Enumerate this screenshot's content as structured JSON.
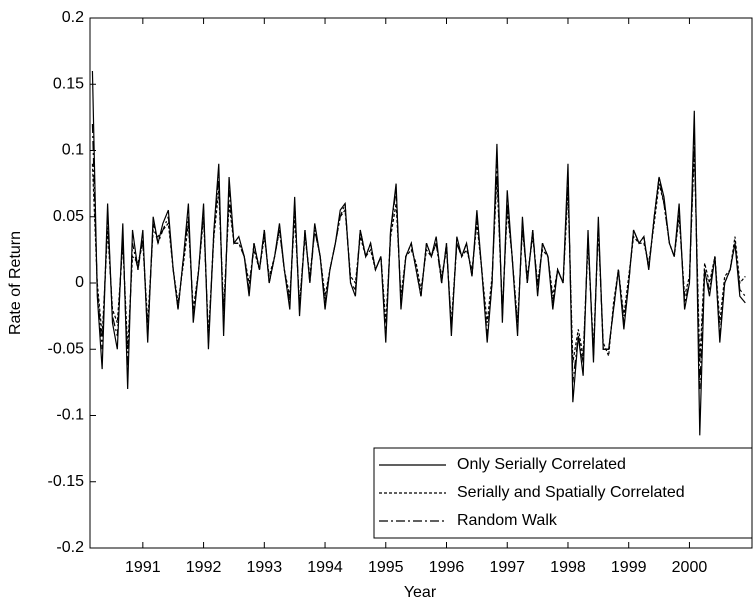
{
  "chart_data": {
    "type": "line",
    "xlabel": "Year",
    "ylabel": "Rate of Return",
    "xlim": [
      1990.13,
      2001.03
    ],
    "xticks": [
      1991,
      1992,
      1993,
      1994,
      1995,
      1996,
      1997,
      1998,
      1999,
      2000
    ],
    "ylim": [
      -0.2,
      0.2
    ],
    "yticks": [
      -0.2,
      -0.15,
      -0.1,
      -0.05,
      0,
      0.05,
      0.1,
      0.15,
      0.2
    ],
    "grid": false,
    "legend": "lower right",
    "x": [
      1990.17,
      1990.25,
      1990.33,
      1990.42,
      1990.5,
      1990.58,
      1990.67,
      1990.75,
      1990.83,
      1990.92,
      1991,
      1991.08,
      1991.17,
      1991.25,
      1991.33,
      1991.42,
      1991.5,
      1991.58,
      1991.67,
      1991.75,
      1991.83,
      1991.92,
      1992,
      1992.08,
      1992.17,
      1992.25,
      1992.33,
      1992.42,
      1992.5,
      1992.58,
      1992.67,
      1992.75,
      1992.83,
      1992.92,
      1993,
      1993.08,
      1993.17,
      1993.25,
      1993.33,
      1993.42,
      1993.5,
      1993.58,
      1993.67,
      1993.75,
      1993.83,
      1993.92,
      1994,
      1994.08,
      1994.17,
      1994.25,
      1994.33,
      1994.42,
      1994.5,
      1994.58,
      1994.67,
      1994.75,
      1994.83,
      1994.92,
      1995,
      1995.08,
      1995.17,
      1995.25,
      1995.33,
      1995.42,
      1995.5,
      1995.58,
      1995.67,
      1995.75,
      1995.83,
      1995.92,
      1996,
      1996.08,
      1996.17,
      1996.25,
      1996.33,
      1996.42,
      1996.5,
      1996.58,
      1996.67,
      1996.75,
      1996.83,
      1996.92,
      1997,
      1997.08,
      1997.17,
      1997.25,
      1997.33,
      1997.42,
      1997.5,
      1997.58,
      1997.67,
      1997.75,
      1997.83,
      1997.92,
      1998,
      1998.08,
      1998.17,
      1998.25,
      1998.33,
      1998.42,
      1998.5,
      1998.58,
      1998.67,
      1998.75,
      1998.83,
      1998.92,
      1999,
      1999.08,
      1999.17,
      1999.25,
      1999.33,
      1999.42,
      1999.5,
      1999.58,
      1999.67,
      1999.75,
      1999.83,
      1999.92,
      2000,
      2000.08,
      2000.17,
      2000.25,
      2000.33,
      2000.42,
      2000.5,
      2000.58,
      2000.67,
      2000.75,
      2000.83,
      2000.92
    ],
    "series": [
      {
        "name": "Only Serially Correlated",
        "color": "#000000",
        "dash": "solid",
        "values": [
          0.16,
          -0.01,
          -0.065,
          0.06,
          -0.03,
          -0.05,
          0.045,
          -0.08,
          0.04,
          0.01,
          0.04,
          -0.045,
          0.05,
          0.03,
          0.045,
          0.055,
          0.01,
          -0.02,
          0.02,
          0.06,
          -0.03,
          0.01,
          0.06,
          -0.05,
          0.04,
          0.09,
          -0.04,
          0.08,
          0.03,
          0.035,
          0.02,
          -0.01,
          0.03,
          0.01,
          0.04,
          0.0,
          0.02,
          0.045,
          0.01,
          -0.02,
          0.065,
          -0.025,
          0.04,
          0.0,
          0.045,
          0.02,
          -0.02,
          0.01,
          0.03,
          0.055,
          0.06,
          0.0,
          -0.01,
          0.04,
          0.02,
          0.03,
          0.01,
          0.02,
          -0.045,
          0.04,
          0.075,
          -0.02,
          0.02,
          0.03,
          0.01,
          -0.01,
          0.03,
          0.02,
          0.035,
          0.0,
          0.03,
          -0.04,
          0.035,
          0.02,
          0.03,
          0.005,
          0.055,
          0.01,
          -0.045,
          0.0,
          0.105,
          -0.03,
          0.07,
          0.02,
          -0.04,
          0.05,
          0.0,
          0.04,
          -0.01,
          0.03,
          0.02,
          -0.02,
          0.01,
          0.0,
          0.09,
          -0.09,
          -0.04,
          -0.07,
          0.04,
          -0.06,
          0.05,
          -0.05,
          -0.05,
          -0.02,
          0.01,
          -0.035,
          0.0,
          0.04,
          0.03,
          0.035,
          0.01,
          0.05,
          0.08,
          0.065,
          0.03,
          0.02,
          0.06,
          -0.02,
          0.0,
          0.13,
          -0.115,
          0.01,
          -0.01,
          0.02,
          -0.045,
          0.0,
          0.01,
          0.03,
          -0.01,
          -0.015
        ]
      },
      {
        "name": "Serially and Spatially Correlated",
        "color": "#000000",
        "dash": "dashed",
        "values": [
          0.09,
          0.0,
          -0.04,
          0.04,
          -0.02,
          -0.03,
          0.03,
          -0.05,
          0.02,
          0.015,
          0.03,
          -0.03,
          0.04,
          0.035,
          0.04,
          0.045,
          0.01,
          -0.015,
          0.015,
          0.045,
          -0.02,
          0.01,
          0.05,
          -0.04,
          0.035,
          0.07,
          -0.02,
          0.06,
          0.03,
          0.03,
          0.02,
          0.0,
          0.025,
          0.01,
          0.035,
          0.005,
          0.02,
          0.04,
          0.01,
          -0.01,
          0.05,
          -0.015,
          0.035,
          0.005,
          0.04,
          0.02,
          -0.01,
          0.01,
          0.03,
          0.05,
          0.055,
          0.005,
          0.0,
          0.035,
          0.02,
          0.025,
          0.01,
          0.02,
          -0.03,
          0.035,
          0.06,
          -0.01,
          0.02,
          0.025,
          0.015,
          -0.005,
          0.025,
          0.02,
          0.03,
          0.005,
          0.025,
          -0.03,
          0.03,
          0.02,
          0.025,
          0.01,
          0.045,
          0.01,
          -0.03,
          0.005,
          0.08,
          -0.02,
          0.055,
          0.02,
          -0.03,
          0.04,
          0.005,
          0.035,
          0.0,
          0.025,
          0.02,
          -0.01,
          0.01,
          0.0,
          0.07,
          -0.06,
          -0.035,
          -0.055,
          0.03,
          -0.05,
          0.04,
          -0.045,
          -0.055,
          -0.015,
          0.01,
          -0.025,
          0.005,
          0.035,
          0.03,
          0.03,
          0.015,
          0.045,
          0.075,
          0.06,
          0.03,
          0.02,
          0.05,
          -0.01,
          0.005,
          0.1,
          -0.06,
          0.015,
          0.0,
          0.02,
          -0.03,
          0.005,
          0.01,
          0.035,
          0.0,
          0.005
        ]
      },
      {
        "name": "Random Walk",
        "color": "#000000",
        "dash": "dashdot",
        "values": [
          0.12,
          -0.005,
          -0.05,
          0.05,
          -0.025,
          -0.04,
          0.035,
          -0.065,
          0.03,
          0.01,
          0.035,
          -0.04,
          0.045,
          0.03,
          0.04,
          0.05,
          0.01,
          -0.02,
          0.02,
          0.05,
          -0.025,
          0.01,
          0.055,
          -0.045,
          0.04,
          0.08,
          -0.03,
          0.07,
          0.03,
          0.03,
          0.02,
          -0.005,
          0.03,
          0.01,
          0.04,
          0.0,
          0.02,
          0.04,
          0.01,
          -0.015,
          0.06,
          -0.02,
          0.04,
          0.0,
          0.04,
          0.02,
          -0.015,
          0.01,
          0.03,
          0.05,
          0.06,
          0.0,
          -0.005,
          0.04,
          0.02,
          0.03,
          0.01,
          0.02,
          -0.04,
          0.04,
          0.07,
          -0.015,
          0.02,
          0.03,
          0.01,
          -0.01,
          0.03,
          0.02,
          0.03,
          0.0,
          0.03,
          -0.035,
          0.03,
          0.02,
          0.03,
          0.005,
          0.05,
          0.01,
          -0.04,
          0.0,
          0.09,
          -0.025,
          0.06,
          0.02,
          -0.035,
          0.045,
          0.0,
          0.04,
          -0.005,
          0.03,
          0.02,
          -0.015,
          0.01,
          0.0,
          0.08,
          -0.075,
          -0.04,
          -0.06,
          0.035,
          -0.055,
          0.045,
          -0.05,
          -0.05,
          -0.02,
          0.01,
          -0.03,
          0.0,
          0.04,
          0.03,
          0.035,
          0.01,
          0.05,
          0.08,
          0.06,
          0.03,
          0.02,
          0.055,
          -0.015,
          0.0,
          0.11,
          -0.08,
          0.01,
          -0.005,
          0.02,
          -0.04,
          0.0,
          0.01,
          0.03,
          -0.005,
          -0.01
        ]
      }
    ]
  }
}
